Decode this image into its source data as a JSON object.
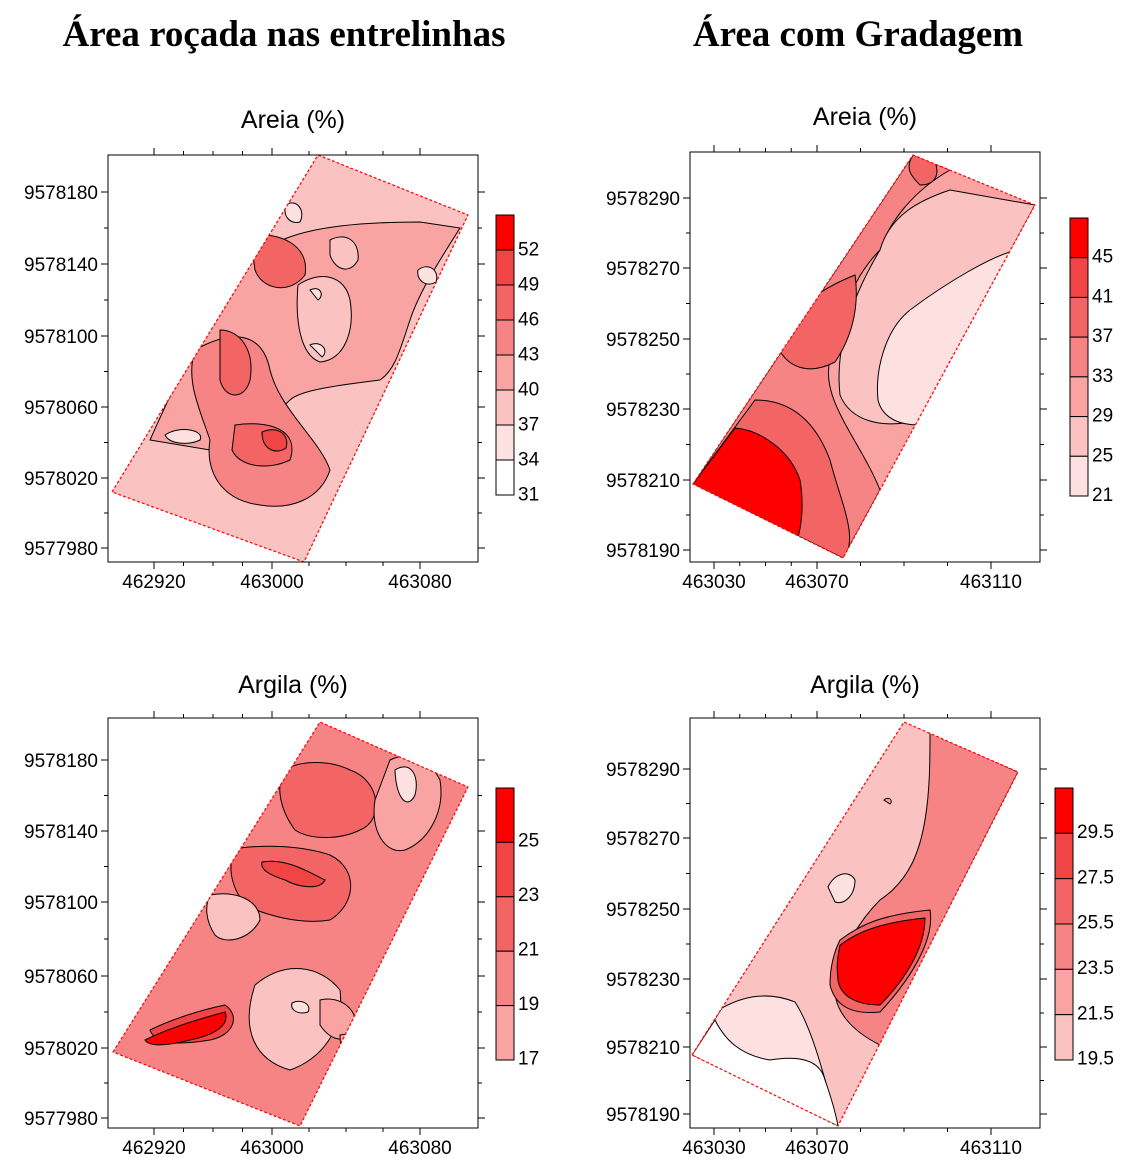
{
  "headings": {
    "left": "Área roçada nas entrelinhas",
    "right": "Área com Gradagem"
  },
  "colors": {
    "scale": [
      "#ffffff",
      "#fde0e0",
      "#fbc2c2",
      "#f9a3a3",
      "#f68484",
      "#f36565",
      "#f14545",
      "#ff0000"
    ],
    "contour": "#000000",
    "boundary": "#ff0000"
  },
  "chart_data": [
    {
      "type": "heatmap",
      "id": "roc-areia",
      "title": "Areia (%)",
      "xticks": [
        462920,
        463000,
        463080
      ],
      "yticks": [
        9577980,
        9578020,
        9578060,
        9578100,
        9578140,
        9578180
      ],
      "xlim": [
        462900,
        463100
      ],
      "ylim": [
        9577970,
        9578200
      ],
      "legend_levels": [
        "52",
        "49",
        "46",
        "43",
        "40",
        "37",
        "34",
        "31"
      ],
      "legend_range": [
        31,
        55
      ]
    },
    {
      "type": "heatmap",
      "id": "grad-areia",
      "title": "Areia (%)",
      "xticks": [
        463030,
        463070,
        463110
      ],
      "yticks": [
        9578190,
        9578210,
        9578230,
        9578250,
        9578270,
        9578290
      ],
      "xlim": [
        463025,
        463120
      ],
      "ylim": [
        9578185,
        9578300
      ],
      "legend_levels": [
        "45",
        "41",
        "37",
        "33",
        "29",
        "25",
        "21"
      ],
      "legend_range": [
        21,
        49
      ]
    },
    {
      "type": "heatmap",
      "id": "roc-argila",
      "title": "Argila (%)",
      "xticks": [
        462920,
        463000,
        463080
      ],
      "yticks": [
        9577980,
        9578020,
        9578060,
        9578100,
        9578140,
        9578180
      ],
      "xlim": [
        462900,
        463100
      ],
      "ylim": [
        9577970,
        9578200
      ],
      "legend_levels": [
        "25",
        "23",
        "21",
        "19",
        "17"
      ],
      "legend_range": [
        17,
        27
      ]
    },
    {
      "type": "heatmap",
      "id": "grad-argila",
      "title": "Argila (%)",
      "xticks": [
        463030,
        463070,
        463110
      ],
      "yticks": [
        9578190,
        9578210,
        9578230,
        9578250,
        9578270,
        9578290
      ],
      "xlim": [
        463025,
        463120
      ],
      "ylim": [
        9578185,
        9578305
      ],
      "legend_levels": [
        "29.5",
        "27.5",
        "25.5",
        "23.5",
        "21.5",
        "19.5"
      ],
      "legend_range": [
        19.5,
        31.5
      ]
    }
  ]
}
